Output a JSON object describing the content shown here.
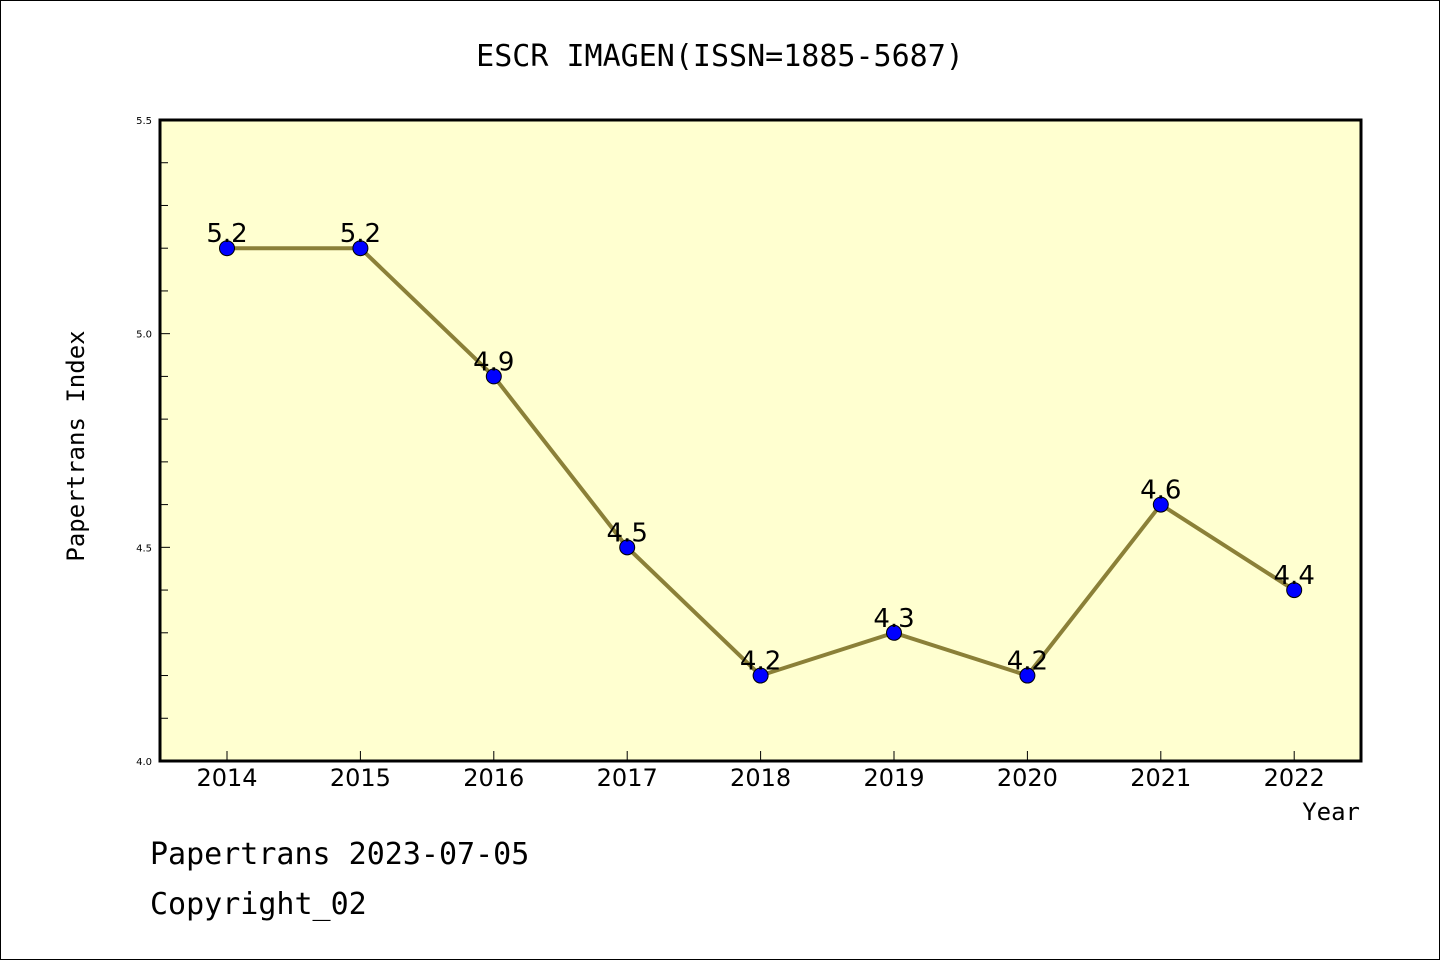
{
  "chart_data": {
    "type": "line",
    "title": "ESCR IMAGEN(ISSN=1885-5687)",
    "xlabel": "Year",
    "ylabel": "Papertrans Index",
    "categories": [
      "2014",
      "2015",
      "2016",
      "2017",
      "2018",
      "2019",
      "2020",
      "2021",
      "2022"
    ],
    "series": [
      {
        "values": [
          5.2,
          5.2,
          4.9,
          4.5,
          4.2,
          4.3,
          4.2,
          4.6,
          4.4
        ]
      }
    ],
    "data_labels": [
      "5.2",
      "5.2",
      "4.9",
      "4.5",
      "4.2",
      "4.3",
      "4.2",
      "4.6",
      "4.4"
    ],
    "ylim": [
      4.0,
      5.5
    ],
    "yticks": [
      "4.0",
      "4.5",
      "5.0",
      "5.5"
    ],
    "grid": false,
    "legend": "none",
    "colors": {
      "plot_background": "#ffffd0",
      "line": "#8b8038",
      "marker": "#0000ff"
    }
  },
  "footer": {
    "line1": "Papertrans 2023-07-05",
    "line2": "Copyright_02"
  }
}
